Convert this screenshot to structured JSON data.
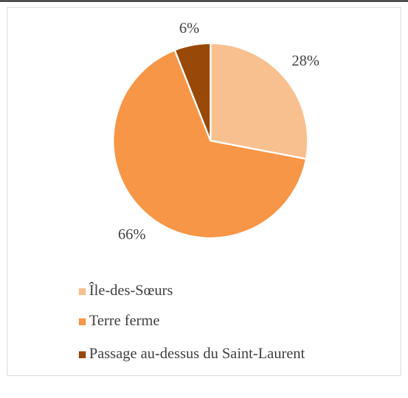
{
  "chart_data": {
    "type": "pie",
    "categories": [
      "Île-des-Sœurs",
      "Terre ferme",
      "Passage au-dessus du Saint-Laurent"
    ],
    "values": [
      28,
      66,
      6
    ],
    "value_labels": [
      "28%",
      "66%",
      "6%"
    ],
    "colors": [
      "#f9c08f",
      "#f79646",
      "#984807"
    ],
    "legend": "bottom"
  }
}
